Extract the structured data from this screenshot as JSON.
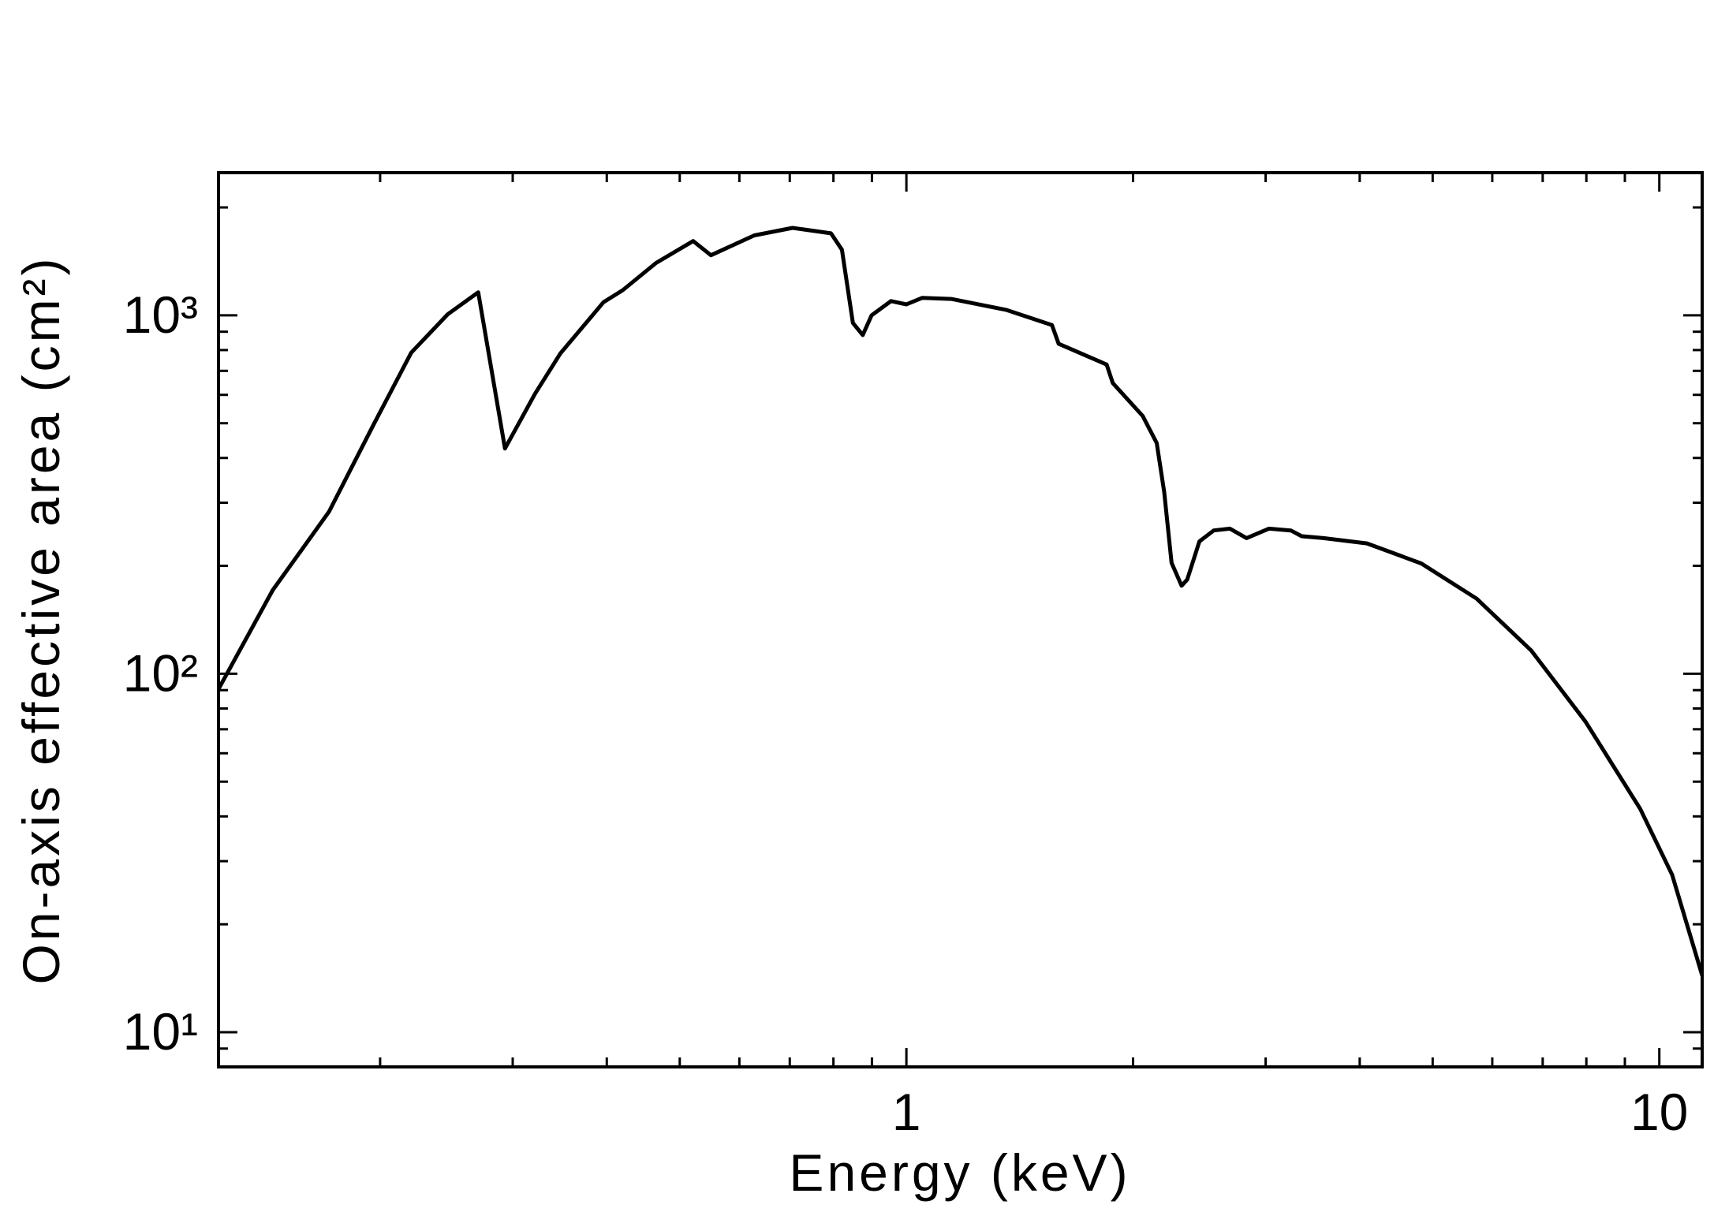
{
  "chart_data": {
    "type": "line",
    "x_label": "Energy (keV)",
    "y_label": "On-axis effective area (cm²)",
    "log_x": true,
    "log_y": true,
    "grid": false,
    "xlim": [
      0.122,
      11.4
    ],
    "ylim": [
      8,
      2500
    ],
    "xticks": [
      1,
      10
    ],
    "yticks": [
      {
        "value": 10,
        "label": "10¹"
      },
      {
        "value": 100,
        "label": "10²"
      },
      {
        "value": 1000,
        "label": "10³"
      }
    ],
    "x": [
      0.122,
      0.144,
      0.171,
      0.196,
      0.22,
      0.246,
      0.27,
      0.293,
      0.321,
      0.347,
      0.396,
      0.42,
      0.465,
      0.521,
      0.55,
      0.628,
      0.706,
      0.794,
      0.821,
      0.849,
      0.875,
      0.899,
      0.954,
      1.0,
      1.05,
      1.147,
      1.356,
      1.561,
      1.593,
      1.845,
      1.88,
      2.06,
      2.15,
      2.2,
      2.25,
      2.32,
      2.36,
      2.45,
      2.56,
      2.69,
      2.83,
      3.03,
      3.24,
      3.35,
      3.58,
      4.09,
      4.83,
      5.72,
      6.76,
      7.98,
      9.43,
      10.4,
      11.4
    ],
    "series": [
      {
        "color": "#000000",
        "values": [
          90.6,
          171,
          283,
          495,
          787,
          1007,
          1159,
          425,
          603,
          782,
          1088,
          1175,
          1400,
          1611,
          1471,
          1671,
          1754,
          1693,
          1524,
          952,
          881,
          1000,
          1096,
          1073,
          1119,
          1111,
          1036,
          939,
          833,
          729,
          647,
          524,
          440,
          321,
          204,
          176,
          183,
          234,
          251,
          254,
          239,
          254,
          251,
          242,
          239,
          231,
          203,
          162,
          116,
          73.5,
          42,
          27.5,
          14.4
        ]
      }
    ]
  }
}
